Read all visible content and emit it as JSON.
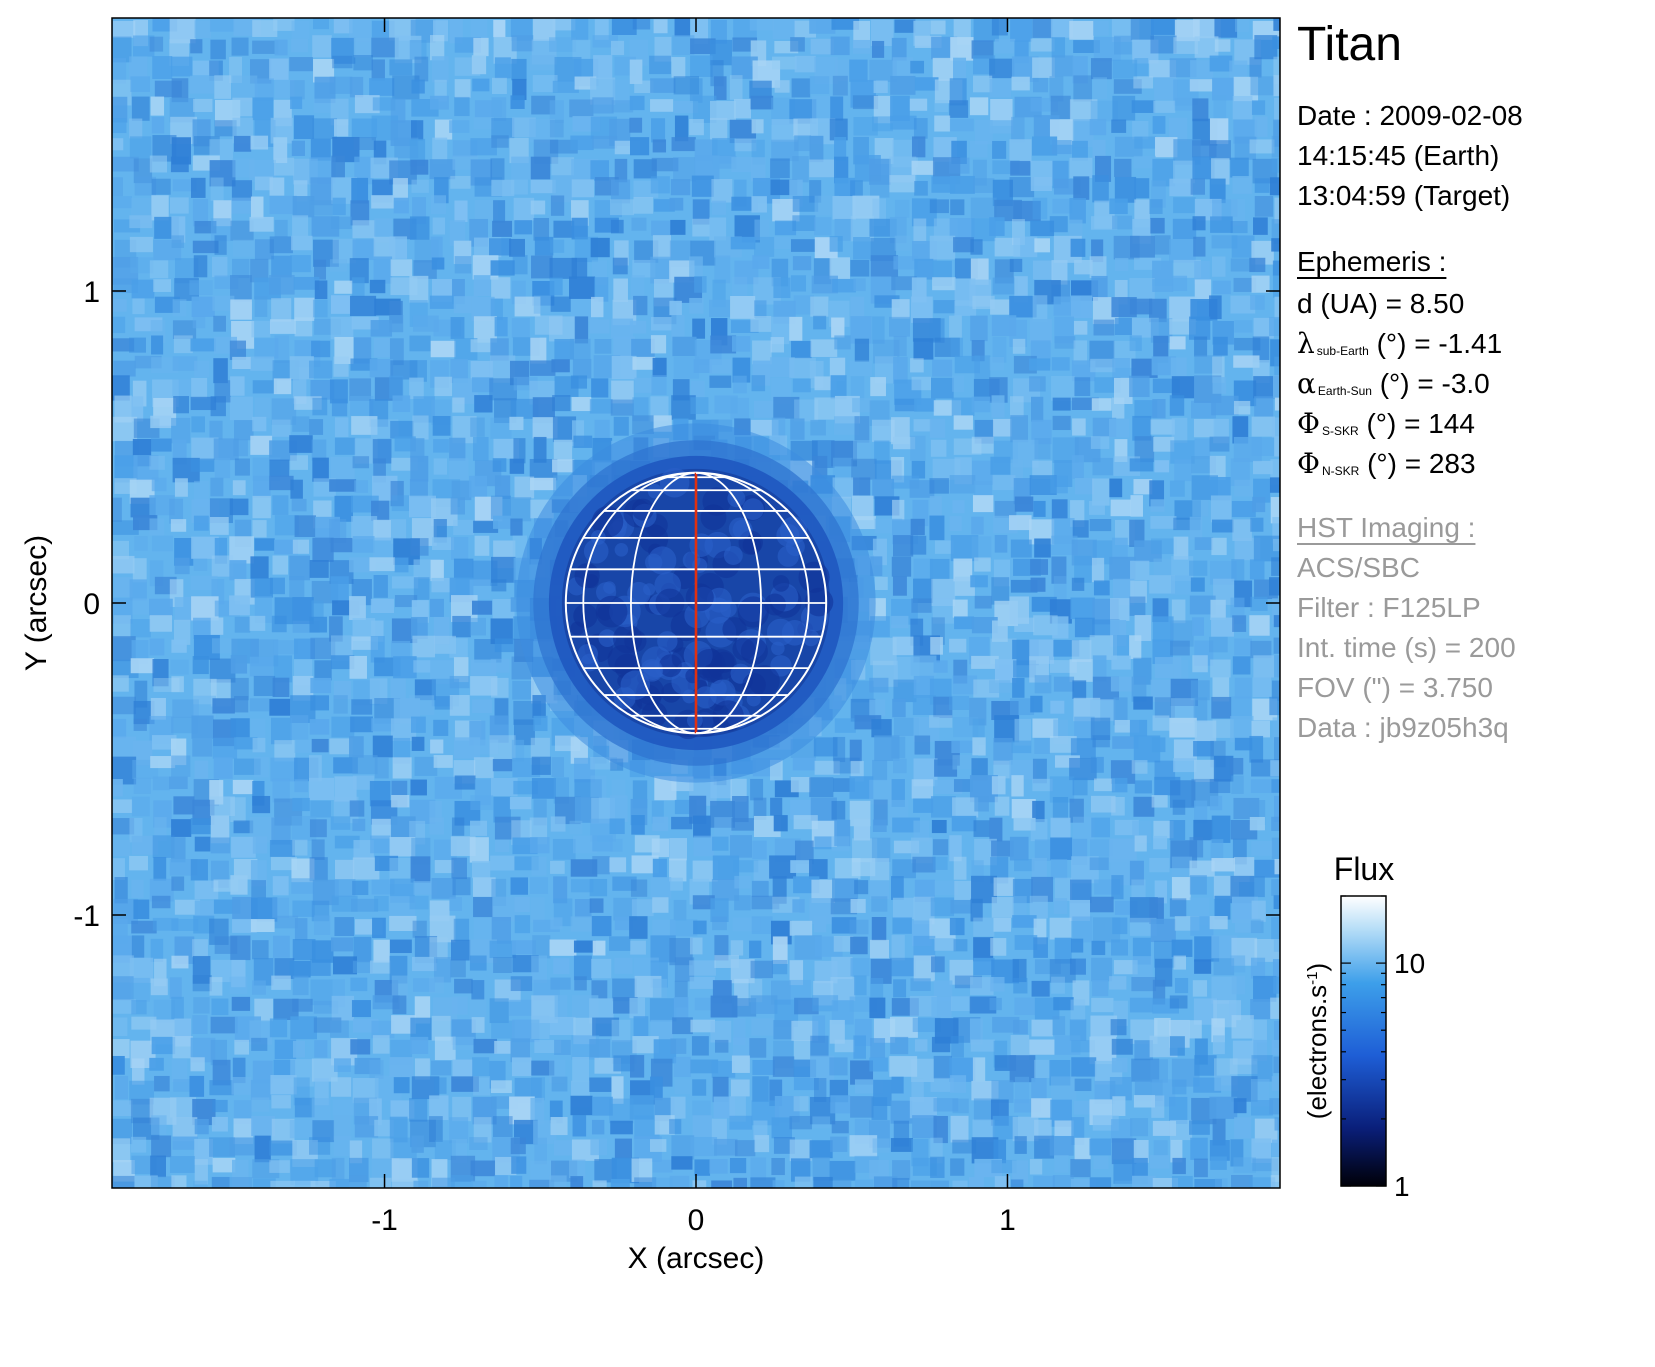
{
  "chart_data": {
    "type": "heatmap",
    "title": "Titan",
    "xlabel": "X (arcsec)",
    "ylabel": "Y (arcsec)",
    "xlim": [
      -1.875,
      1.875
    ],
    "ylim": [
      -1.875,
      1.875
    ],
    "x_ticks": [
      -1,
      0,
      1
    ],
    "y_ticks": [
      -1,
      0,
      1
    ],
    "x_tick_labels": [
      "-1",
      "0",
      "1"
    ],
    "y_tick_labels": [
      "1",
      "0",
      "-1"
    ],
    "colorbar": {
      "title": "Flux",
      "label": "(electrons.s",
      "label_sup": "-1",
      "label_close": ")",
      "scale": "log",
      "range": [
        1,
        20
      ],
      "tick_values": [
        1,
        10
      ],
      "tick_labels": [
        "1",
        "10"
      ],
      "colors": [
        "#000008",
        "#0a1f7a",
        "#1e5ed6",
        "#3d9fea",
        "#bfe2f8",
        "#ffffff"
      ]
    },
    "planet": {
      "center": [
        0,
        0
      ],
      "radius_arcsec": 0.418,
      "latitude_lines_deg": [
        -75,
        -60,
        -45,
        -30,
        -15,
        0,
        15,
        30,
        45,
        60,
        75
      ],
      "longitude_lines_deg": [
        -60,
        -30,
        0,
        30,
        60
      ],
      "central_meridian_color": "#e03010",
      "grid_color": "#ffffff"
    },
    "background_flux": 12,
    "disk_flux": 4
  },
  "info": {
    "target": "Titan",
    "date_label": "Date : 2009-02-08",
    "earth_time": "14:15:45 (Earth)",
    "target_time": "13:04:59 (Target)",
    "ephemeris_header": "Ephemeris :",
    "distance": "d (UA)    = 8.50",
    "lambda_sym": "λ",
    "lambda_sub": "sub-Earth",
    "lambda_val": "(°) = -1.41",
    "alpha_sym": "α",
    "alpha_sub": "Earth-Sun",
    "alpha_val": "(°) = -3.0",
    "phi_s_sym": "Φ",
    "phi_s_sub": "S-SKR",
    "phi_s_val": "(°)   = 144",
    "phi_n_sym": "Φ",
    "phi_n_sub": "N-SKR",
    "phi_n_val": "(°)   = 283",
    "hst_header": "HST Imaging :",
    "instrument": "ACS/SBC",
    "filter": "Filter : F125LP",
    "int_time": "Int. time (s) = 200",
    "fov": "FOV (\") = 3.750",
    "dataset": "Data : jb9z05h3q"
  }
}
